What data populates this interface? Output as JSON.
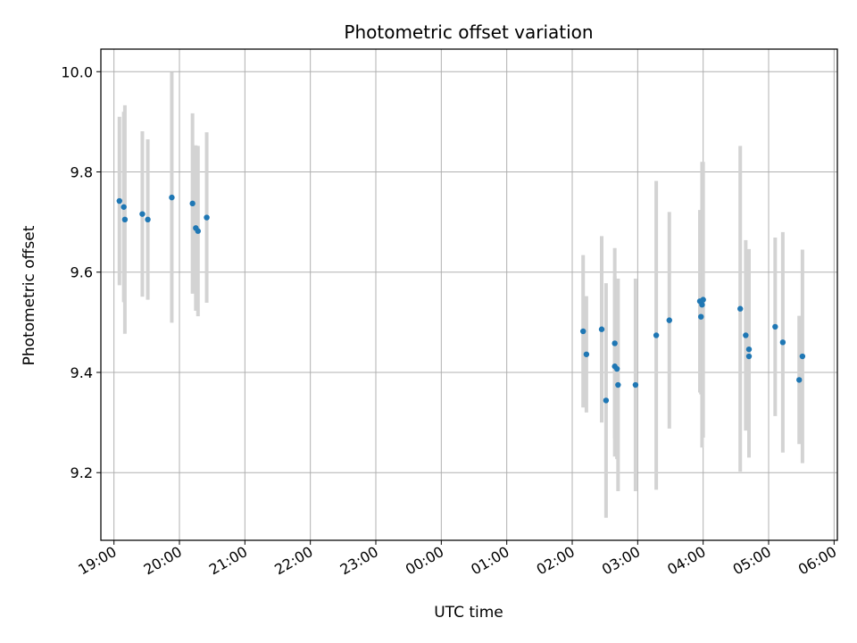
{
  "chart_data": {
    "type": "scatter",
    "title": "Photometric offset variation",
    "xlabel": "UTC time",
    "ylabel": "Photometric offset",
    "grid": true,
    "legend": "none",
    "xlim": [
      "18:48",
      "06:03"
    ],
    "ylim": [
      9.065,
      10.045
    ],
    "x_tick_labels": [
      "19:00",
      "20:00",
      "21:00",
      "22:00",
      "23:00",
      "00:00",
      "01:00",
      "02:00",
      "03:00",
      "04:00",
      "05:00",
      "06:00"
    ],
    "y_tick_values": [
      9.2,
      9.4,
      9.6,
      9.8,
      10.0
    ],
    "y_tick_labels": [
      "9.2",
      "9.4",
      "9.6",
      "9.8",
      "10.0"
    ],
    "colors": {
      "points": "#1f77b4",
      "error_bars": "#d3d3d3",
      "grid": "#b0b0b0"
    },
    "series": [
      {
        "points": [
          {
            "time": "19:05",
            "y": 9.742,
            "err": 0.168
          },
          {
            "time": "19:09",
            "y": 9.73,
            "err": 0.19
          },
          {
            "time": "19:10",
            "y": 9.705,
            "err": 0.228
          },
          {
            "time": "19:26",
            "y": 9.716,
            "err": 0.165
          },
          {
            "time": "19:31",
            "y": 9.705,
            "err": 0.16
          },
          {
            "time": "19:53",
            "y": 9.749,
            "err": 0.25
          },
          {
            "time": "20:12",
            "y": 9.737,
            "err": 0.18
          },
          {
            "time": "20:15",
            "y": 9.688,
            "err": 0.165
          },
          {
            "time": "20:17",
            "y": 9.682,
            "err": 0.17
          },
          {
            "time": "20:25",
            "y": 9.709,
            "err": 0.17
          },
          {
            "time": "02:10",
            "y": 9.482,
            "err": 0.152
          },
          {
            "time": "02:13",
            "y": 9.436,
            "err": 0.116
          },
          {
            "time": "02:27",
            "y": 9.486,
            "err": 0.186
          },
          {
            "time": "02:31",
            "y": 9.344,
            "err": 0.234
          },
          {
            "time": "02:39",
            "y": 9.458,
            "err": 0.19
          },
          {
            "time": "02:39",
            "y": 9.412,
            "err": 0.18
          },
          {
            "time": "02:41",
            "y": 9.407,
            "err": 0.18
          },
          {
            "time": "02:42",
            "y": 9.375,
            "err": 0.212
          },
          {
            "time": "02:58",
            "y": 9.375,
            "err": 0.212
          },
          {
            "time": "03:17",
            "y": 9.474,
            "err": 0.308
          },
          {
            "time": "03:29",
            "y": 9.504,
            "err": 0.216
          },
          {
            "time": "03:57",
            "y": 9.542,
            "err": 0.182
          },
          {
            "time": "03:58",
            "y": 9.511,
            "err": 0.155
          },
          {
            "time": "03:59",
            "y": 9.535,
            "err": 0.285
          },
          {
            "time": "04:00",
            "y": 9.545,
            "err": 0.275
          },
          {
            "time": "04:34",
            "y": 9.527,
            "err": 0.325
          },
          {
            "time": "04:39",
            "y": 9.474,
            "err": 0.19
          },
          {
            "time": "04:42",
            "y": 9.446,
            "err": 0.2
          },
          {
            "time": "04:42",
            "y": 9.432,
            "err": 0.202
          },
          {
            "time": "05:06",
            "y": 9.491,
            "err": 0.178
          },
          {
            "time": "05:13",
            "y": 9.46,
            "err": 0.22
          },
          {
            "time": "05:28",
            "y": 9.385,
            "err": 0.128
          },
          {
            "time": "05:31",
            "y": 9.432,
            "err": 0.213
          }
        ]
      }
    ]
  }
}
